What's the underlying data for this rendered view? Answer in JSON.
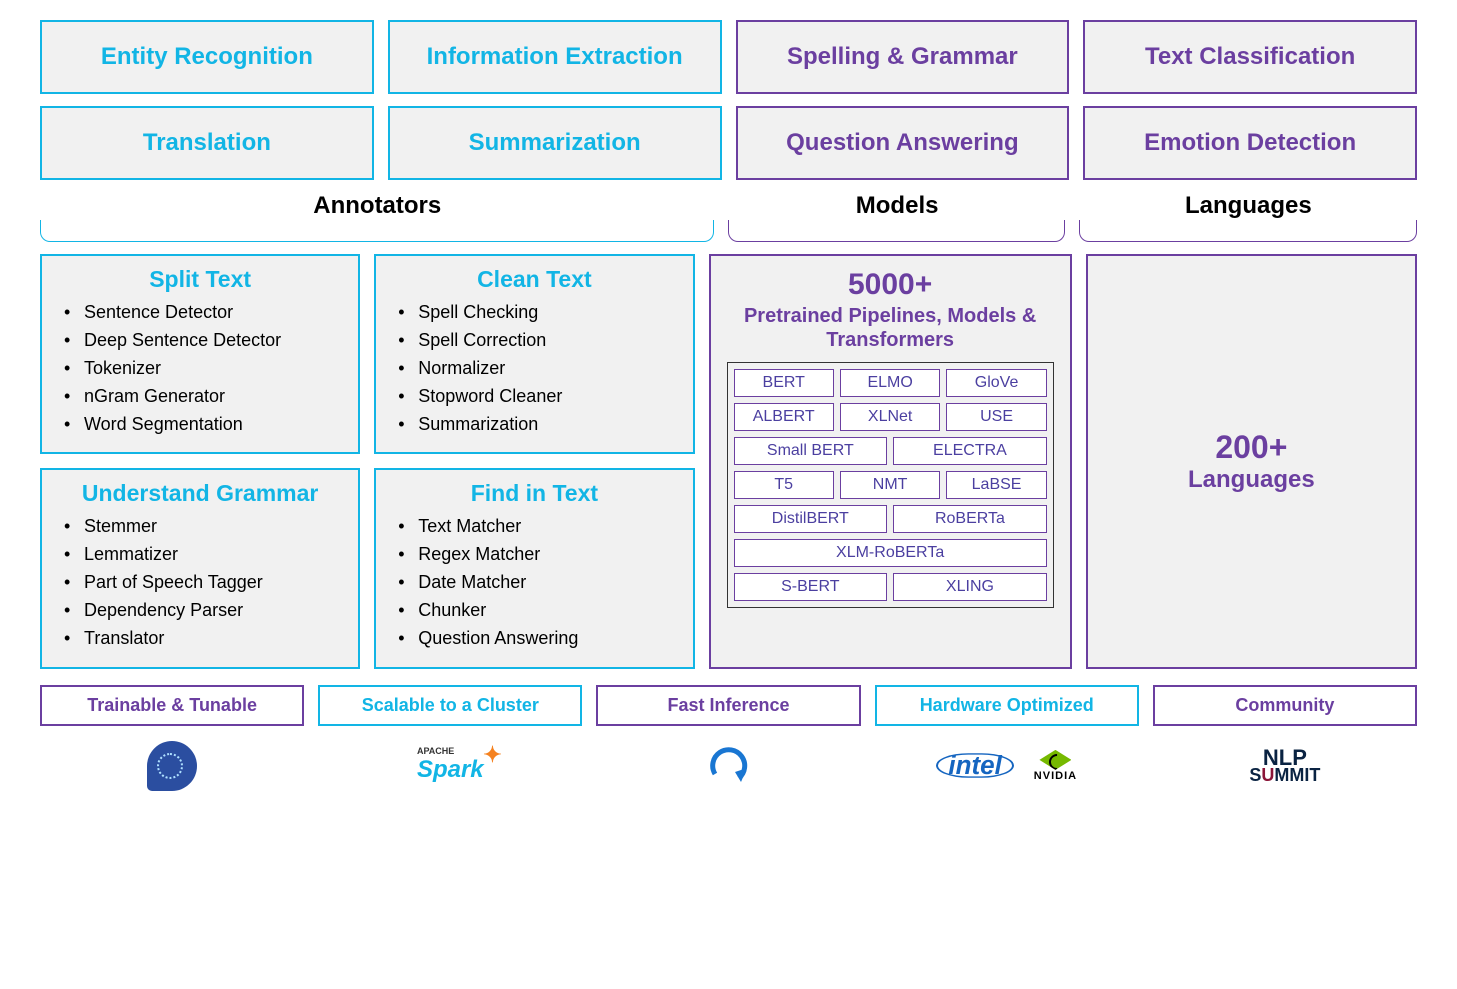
{
  "colors": {
    "cyan": "#12b5e5",
    "purple": "#6b3fa0",
    "box_bg": "#f1f1f1",
    "text": "#000000",
    "page_bg": "#ffffff"
  },
  "top_rows": [
    [
      {
        "label": "Entity Recognition",
        "style": "cyan"
      },
      {
        "label": "Information Extraction",
        "style": "cyan"
      },
      {
        "label": "Spelling & Grammar",
        "style": "purple"
      },
      {
        "label": "Text Classification",
        "style": "purple"
      }
    ],
    [
      {
        "label": "Translation",
        "style": "cyan"
      },
      {
        "label": "Summarization",
        "style": "cyan"
      },
      {
        "label": "Question Answering",
        "style": "purple"
      },
      {
        "label": "Emotion Detection",
        "style": "purple"
      }
    ]
  ],
  "section_labels": {
    "annotators": "Annotators",
    "models": "Models",
    "languages": "Languages"
  },
  "annotators": [
    {
      "title": "Split Text",
      "items": [
        "Sentence Detector",
        "Deep Sentence Detector",
        "Tokenizer",
        "nGram Generator",
        "Word Segmentation"
      ]
    },
    {
      "title": "Clean Text",
      "items": [
        "Spell Checking",
        "Spell Correction",
        "Normalizer",
        "Stopword Cleaner",
        "Summarization"
      ]
    },
    {
      "title": "Understand Grammar",
      "items": [
        "Stemmer",
        "Lemmatizer",
        "Part of Speech Tagger",
        "Dependency Parser",
        "Translator"
      ]
    },
    {
      "title": "Find in Text",
      "items": [
        "Text Matcher",
        "Regex Matcher",
        "Date Matcher",
        "Chunker",
        "Question Answering"
      ]
    }
  ],
  "models_panel": {
    "count": "5000+",
    "subtitle": "Pretrained Pipelines, Models & Transformers",
    "rows": [
      [
        "BERT",
        "ELMO",
        "GloVe"
      ],
      [
        "ALBERT",
        "XLNet",
        "USE"
      ],
      [
        "Small BERT",
        "ELECTRA"
      ],
      [
        "T5",
        "NMT",
        "LaBSE"
      ],
      [
        "DistilBERT",
        "RoBERTa"
      ],
      [
        "XLM-RoBERTa"
      ],
      [
        "S-BERT",
        "XLING"
      ]
    ]
  },
  "languages_panel": {
    "count": "200+",
    "subtitle": "Languages"
  },
  "pills": [
    {
      "label": "Trainable & Tunable",
      "style": "purple"
    },
    {
      "label": "Scalable to a Cluster",
      "style": "cyan"
    },
    {
      "label": "Fast Inference",
      "style": "purple"
    },
    {
      "label": "Hardware Optimized",
      "style": "cyan"
    },
    {
      "label": "Community",
      "style": "purple"
    }
  ],
  "logos": {
    "spark_prefix": "APACHE",
    "spark_text": "Spark",
    "intel_text": "intel",
    "nvidia_text": "NVIDIA",
    "nlp_top": "NLP",
    "nlp_bottom_pre": "S",
    "nlp_bottom_u": "U",
    "nlp_bottom_post": "MMIT"
  }
}
